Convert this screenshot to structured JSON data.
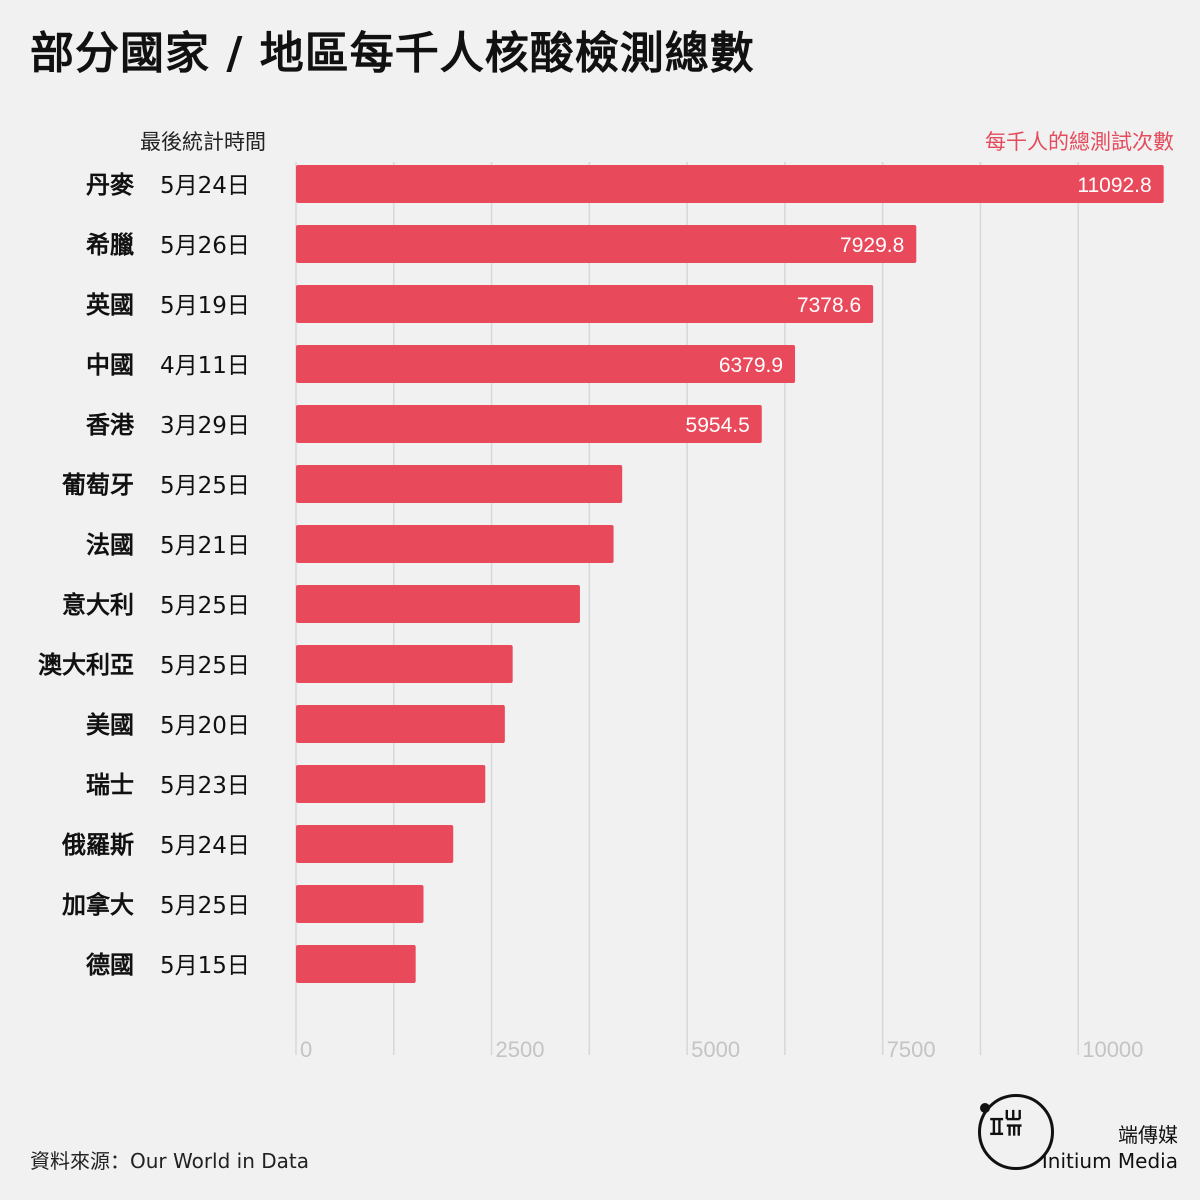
{
  "title": "部分國家 / 地區每千人核酸檢測總數",
  "date_column_header": "最後統計時間",
  "value_column_header": "每千人的總測試次數",
  "source": "資料來源：Our World in Data",
  "brand": {
    "name_cn": "端傳媒",
    "name_en": "Initium Media",
    "logo_icon": "initium-logo-icon"
  },
  "colors": {
    "bar": "#e84a5c",
    "grid": "#d7d7d7",
    "tick": "#c4c4c4",
    "value_label": "#ffffff",
    "accent_text": "#e44b5c"
  },
  "chart_data": {
    "type": "bar",
    "orientation": "horizontal",
    "categories": [
      "丹麥",
      "希臘",
      "英國",
      "中國",
      "香港",
      "葡萄牙",
      "法國",
      "意大利",
      "澳大利亞",
      "美國",
      "瑞士",
      "俄羅斯",
      "加拿大",
      "德國"
    ],
    "dates": [
      "5月24日",
      "5月26日",
      "5月19日",
      "4月11日",
      "3月29日",
      "5月25日",
      "5月21日",
      "5月25日",
      "5月25日",
      "5月20日",
      "5月23日",
      "5月24日",
      "5月25日",
      "5月15日"
    ],
    "values": [
      11092.8,
      7929.8,
      7378.6,
      6379.9,
      5954.5,
      4170,
      4060,
      3630,
      2770,
      2670,
      2420,
      2010,
      1630,
      1530
    ],
    "data_labels": [
      "11092.8",
      "7929.8",
      "7378.6",
      "6379.9",
      "5954.5",
      "",
      "",
      "",
      "",
      "",
      "",
      "",
      "",
      ""
    ],
    "xlim": [
      0,
      11250
    ],
    "xticks": [
      0,
      2500,
      5000,
      7500,
      10000
    ],
    "xtick_labels": [
      "0",
      "2500",
      "5000",
      "7500",
      "10000"
    ],
    "grid": true
  }
}
